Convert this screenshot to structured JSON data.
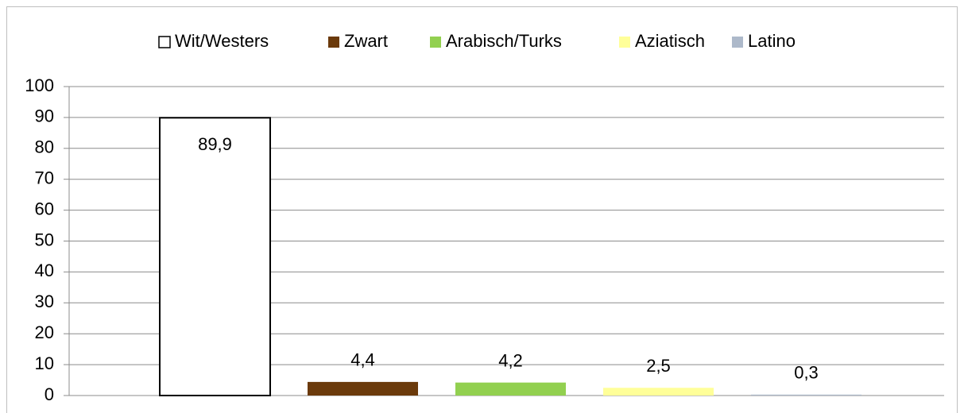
{
  "chart_data": {
    "type": "bar",
    "series": [
      {
        "name": "Wit/Westers",
        "color": "#ffffff",
        "values": [
          89.9
        ],
        "value_labels": [
          "89,9"
        ]
      },
      {
        "name": "Zwart",
        "color": "#6b3a0b",
        "values": [
          4.4
        ],
        "value_labels": [
          "4,4"
        ]
      },
      {
        "name": "Arabisch/Turks",
        "color": "#92d050",
        "values": [
          4.2
        ],
        "value_labels": [
          "4,2"
        ]
      },
      {
        "name": "Aziatisch",
        "color": "#ffff99",
        "values": [
          2.5
        ],
        "value_labels": [
          "2,5"
        ]
      },
      {
        "name": "Latino",
        "color": "#adb9ca",
        "values": [
          0.3
        ],
        "value_labels": [
          "0,3"
        ]
      }
    ],
    "ylim": [
      0,
      100
    ],
    "yticks": [
      0,
      10,
      20,
      30,
      40,
      50,
      60,
      70,
      80,
      90,
      100
    ],
    "grid": true,
    "legend": "top"
  }
}
